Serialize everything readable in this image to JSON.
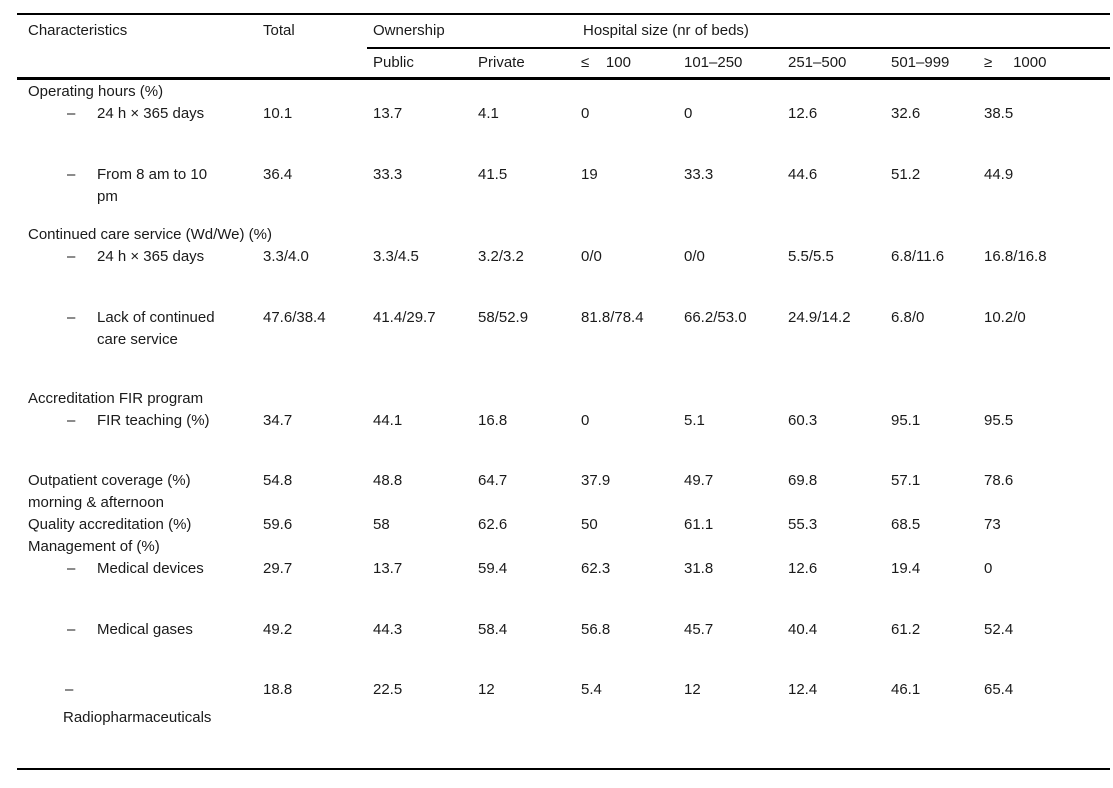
{
  "table": {
    "header": {
      "characteristics": "Characteristics",
      "total": "Total",
      "ownership": "Ownership",
      "hospital_size": "Hospital size (nr of beds)",
      "sub": [
        "Public",
        "Private",
        "≤    100",
        "101–250",
        "251–500",
        "501–999",
        "≥     1000"
      ]
    },
    "rows": [
      {
        "type": "group",
        "label": "Operating hours (%)"
      },
      {
        "type": "item",
        "label": "24 h × 365 days",
        "values": [
          "10.1",
          "13.7",
          "4.1",
          "0",
          "0",
          "12.6",
          "32.6",
          "38.5"
        ]
      },
      {
        "type": "item",
        "label": "From 8 am to 10 pm",
        "values": [
          "36.4",
          "33.3",
          "41.5",
          "19",
          "33.3",
          "44.6",
          "51.2",
          "44.9"
        ]
      },
      {
        "type": "group",
        "label": "Continued care service (Wd/We) (%)"
      },
      {
        "type": "item",
        "label": "24 h × 365 days",
        "values": [
          "3.3/4.0",
          "3.3/4.5",
          "3.2/3.2",
          "0/0",
          "0/0",
          "5.5/5.5",
          "6.8/11.6",
          "16.8/16.8"
        ]
      },
      {
        "type": "item2",
        "label": "Lack of continued care service",
        "values": [
          "47.6/38.4",
          "41.4/29.7",
          "58/52.9",
          "81.8/78.4",
          "66.2/53.0",
          "24.9/14.2",
          "6.8/0",
          "10.2/0"
        ]
      },
      {
        "type": "group",
        "label": "Accreditation FIR program"
      },
      {
        "type": "item",
        "label": "FIR teaching (%)",
        "values": [
          "34.7",
          "44.1",
          "16.8",
          "0",
          "5.1",
          "60.3",
          "95.1",
          "95.5"
        ]
      },
      {
        "type": "plain2",
        "label": "Outpatient coverage (%)",
        "label2": "morning & afternoon",
        "values": [
          "54.8",
          "48.8",
          "64.7",
          "37.9",
          "49.7",
          "69.8",
          "57.1",
          "78.6"
        ]
      },
      {
        "type": "plain1",
        "label": "Quality accreditation (%)",
        "values": [
          "59.6",
          "58",
          "62.6",
          "50",
          "61.1",
          "55.3",
          "68.5",
          "73"
        ]
      },
      {
        "type": "group",
        "label": "Management of (%)"
      },
      {
        "type": "item",
        "label": "Medical devices",
        "values": [
          "29.7",
          "13.7",
          "59.4",
          "62.3",
          "31.8",
          "12.6",
          "19.4",
          "0"
        ]
      },
      {
        "type": "item",
        "label": "Medical gases",
        "values": [
          "49.2",
          "44.3",
          "58.4",
          "56.8",
          "45.7",
          "40.4",
          "61.2",
          "52.4"
        ]
      },
      {
        "type": "item-wrap",
        "label": "Radiopharmaceuticals",
        "values": [
          "18.8",
          "22.5",
          "12",
          "5.4",
          "12",
          "12.4",
          "46.1",
          "65.4"
        ]
      }
    ]
  }
}
